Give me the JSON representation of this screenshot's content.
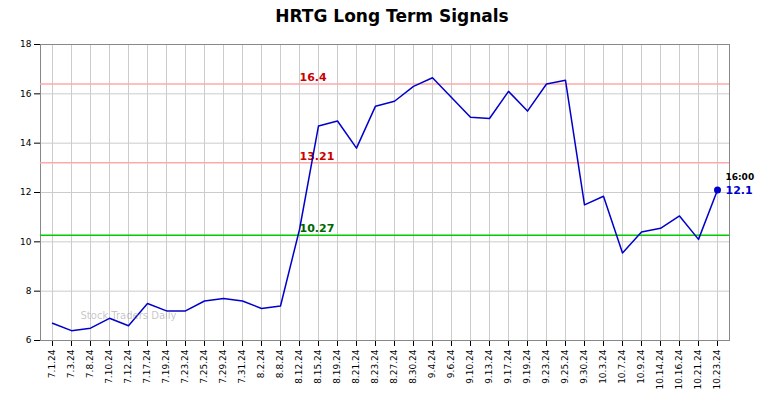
{
  "chart_data": {
    "type": "line",
    "title": "HRTG Long Term Signals",
    "categories": [
      "7.1.24",
      "7.3.24",
      "7.8.24",
      "7.10.24",
      "7.12.24",
      "7.17.24",
      "7.19.24",
      "7.23.24",
      "7.25.24",
      "7.29.24",
      "7.31.24",
      "8.2.24",
      "8.8.24",
      "8.12.24",
      "8.15.24",
      "8.19.24",
      "8.21.24",
      "8.23.24",
      "8.27.24",
      "8.30.24",
      "9.4.24",
      "9.6.24",
      "9.10.24",
      "9.13.24",
      "9.17.24",
      "9.19.24",
      "9.23.24",
      "9.25.24",
      "9.30.24",
      "10.3.24",
      "10.7.24",
      "10.9.24",
      "10.14.24",
      "10.16.24",
      "10.21.24",
      "10.23.24"
    ],
    "values": [
      6.7,
      6.4,
      6.5,
      6.9,
      6.6,
      7.5,
      7.2,
      7.2,
      7.6,
      7.7,
      7.6,
      7.3,
      7.4,
      10.5,
      14.7,
      14.9,
      13.8,
      15.5,
      15.7,
      16.3,
      16.65,
      15.85,
      15.05,
      15.0,
      16.1,
      15.3,
      16.4,
      16.55,
      11.5,
      11.85,
      9.55,
      10.4,
      10.55,
      11.05,
      10.1,
      12.1
    ],
    "color": "#0000cc",
    "ylim": [
      6,
      18
    ],
    "yticks": [
      6,
      8,
      10,
      12,
      14,
      16,
      18
    ],
    "grid": true,
    "hlines": [
      {
        "value": 16.4,
        "label": "16.4",
        "color": "#ffaaaa",
        "label_color": "#cc0000"
      },
      {
        "value": 13.21,
        "label": "13.21",
        "color": "#ffaaaa",
        "label_color": "#cc0000"
      },
      {
        "value": 10.27,
        "label": "10.27",
        "color": "#00cc00",
        "label_color": "#006600"
      }
    ],
    "annotations": [
      {
        "text": "16:00",
        "color": "#000000"
      },
      {
        "text": "12.1",
        "color": "#0000cc"
      }
    ],
    "watermark": "Stock Traders Daily"
  }
}
